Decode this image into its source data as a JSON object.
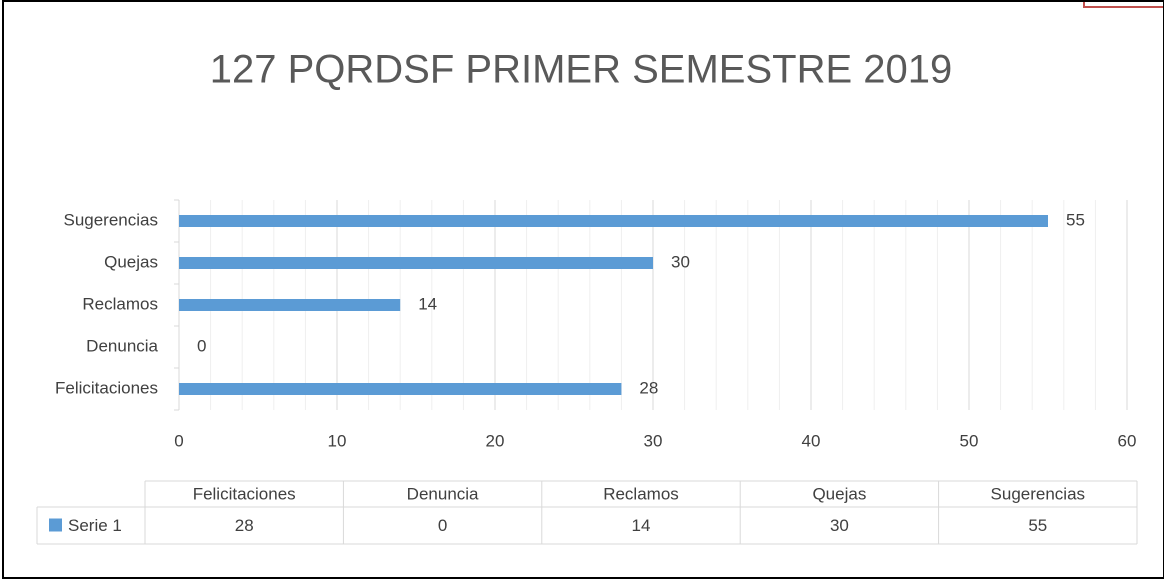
{
  "chart_data": {
    "type": "hbar",
    "title": "127 PQRDSF PRIMER SEMESTRE 2019",
    "categories": [
      "Felicitaciones",
      "Denuncia",
      "Reclamos",
      "Quejas",
      "Sugerencias"
    ],
    "series": [
      {
        "name": "Serie 1",
        "color": "#5b9bd5",
        "values": [
          28,
          0,
          14,
          30,
          55
        ]
      }
    ],
    "xlim": [
      0,
      60
    ],
    "xticks": [
      0,
      10,
      20,
      30,
      40,
      50,
      60
    ],
    "xminor_ticks": [
      2,
      4,
      6,
      8,
      12,
      14,
      16,
      18,
      22,
      24,
      26,
      28,
      32,
      34,
      36,
      38,
      42,
      44,
      46,
      48,
      52,
      54,
      56,
      58
    ],
    "grid": true,
    "data_table": true
  }
}
